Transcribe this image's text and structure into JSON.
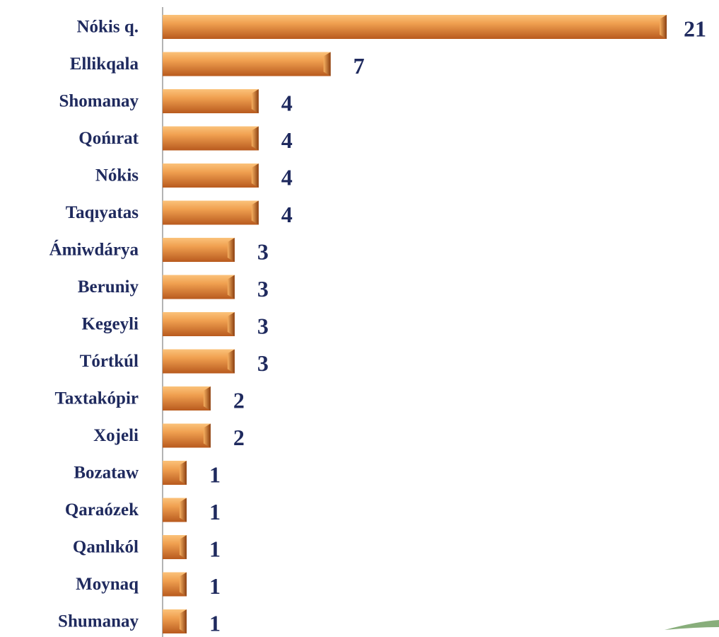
{
  "chart_data": {
    "type": "hbar",
    "categories": [
      "Nókis q.",
      "Ellikqala",
      "Shomanay",
      "Qońırat",
      "Nókis",
      "Taqıyatas",
      "Ámiwdárya",
      "Beruniy",
      "Kegeyli",
      "Tórtkúl",
      "Taxtakópir",
      "Xojeli",
      "Bozataw",
      "Qaraózek",
      "Qanlıkól",
      "Moynaq",
      "Shumanay"
    ],
    "values": [
      21,
      7,
      4,
      4,
      4,
      4,
      3,
      3,
      3,
      3,
      2,
      2,
      1,
      1,
      1,
      1,
      1
    ],
    "color": "#e88a3c",
    "xlim": [
      0,
      21
    ]
  }
}
